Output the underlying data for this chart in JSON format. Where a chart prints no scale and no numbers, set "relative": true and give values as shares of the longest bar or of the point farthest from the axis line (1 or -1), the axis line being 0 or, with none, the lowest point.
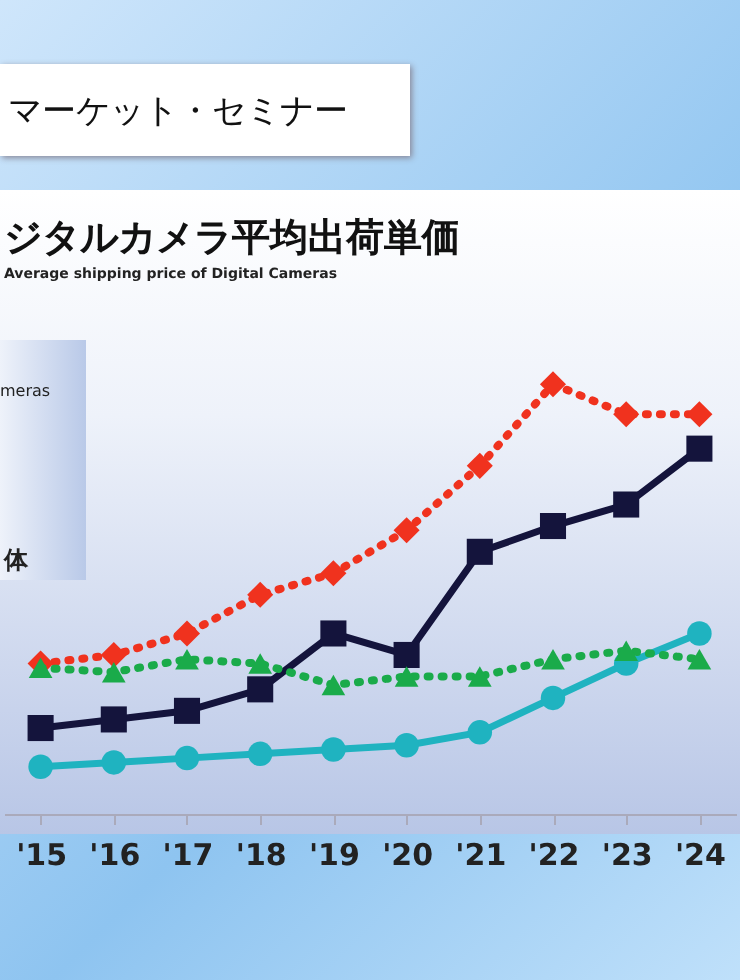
{
  "chart_data": {
    "type": "line",
    "title": "ジタルカメラ平均出荷単価",
    "subtitle": "Average shipping price of Digital Cameras",
    "relative": true,
    "categories": [
      "'15",
      "'16",
      "'17",
      "'18",
      "'19",
      "'20",
      "'21",
      "'22",
      "'23",
      "'24"
    ],
    "series": [
      {
        "color": "#f0321e",
        "marker": "diamond",
        "line_style": "dotted",
        "values": [
          0.35,
          0.37,
          0.42,
          0.51,
          0.56,
          0.66,
          0.81,
          1,
          0.93,
          0.93
        ]
      },
      {
        "color": "#14143c",
        "marker": "square",
        "line_style": "solid",
        "values": [
          0.2,
          0.22,
          0.24,
          0.29,
          0.42,
          0.37,
          0.61,
          0.67,
          0.72,
          0.85
        ]
      },
      {
        "color": "#1fb3c0",
        "marker": "circle",
        "line_style": "solid",
        "values": [
          0.11,
          0.12,
          0.13,
          0.14,
          0.15,
          0.16,
          0.19,
          0.27,
          0.35,
          0.42
        ]
      },
      {
        "color": "#1aab4a",
        "marker": "triangle",
        "line_style": "dotted",
        "values": [
          0.34,
          0.33,
          0.36,
          0.35,
          0.3,
          0.32,
          0.32,
          0.36,
          0.38,
          0.36
        ]
      }
    ],
    "annotations": [
      "マーケット・セミナー",
      "meras",
      "体"
    ]
  }
}
